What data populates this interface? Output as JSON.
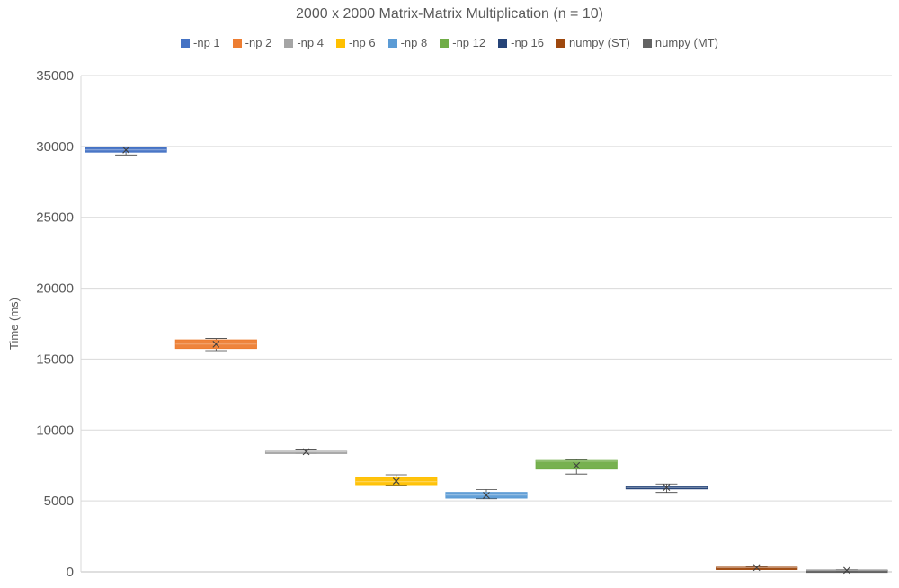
{
  "chart_data": {
    "type": "box",
    "title": "2000 x 2000 Matrix-Matrix Multiplication (n = 10)",
    "xlabel": "",
    "ylabel": "Time (ms)",
    "ylim": [
      0,
      35000
    ],
    "yticks": [
      0,
      5000,
      10000,
      15000,
      20000,
      25000,
      30000,
      35000
    ],
    "grid": true,
    "legend_position": "top",
    "series": [
      {
        "name": "-np 1",
        "color": "#4472C4",
        "min": 29400,
        "q1": 29600,
        "median": 29750,
        "q3": 29900,
        "max": 29950,
        "mean": 29750
      },
      {
        "name": "-np 2",
        "color": "#ED7D31",
        "min": 15600,
        "q1": 15750,
        "median": 16050,
        "q3": 16350,
        "max": 16450,
        "mean": 16050
      },
      {
        "name": "-np 4",
        "color": "#A5A5A5",
        "min": 8350,
        "q1": 8420,
        "median": 8470,
        "q3": 8500,
        "max": 8650,
        "mean": 8470
      },
      {
        "name": "-np 6",
        "color": "#FFC000",
        "min": 6100,
        "q1": 6150,
        "median": 6350,
        "q3": 6650,
        "max": 6850,
        "mean": 6400
      },
      {
        "name": "-np 8",
        "color": "#5B9BD5",
        "min": 5150,
        "q1": 5200,
        "median": 5400,
        "q3": 5600,
        "max": 5800,
        "mean": 5400
      },
      {
        "name": "-np 12",
        "color": "#70AD47",
        "min": 6900,
        "q1": 7250,
        "median": 7800,
        "q3": 7850,
        "max": 7900,
        "mean": 7500
      },
      {
        "name": "-np 16",
        "color": "#264478",
        "min": 5600,
        "q1": 5850,
        "median": 5950,
        "q3": 6050,
        "max": 6200,
        "mean": 5950
      },
      {
        "name": "numpy (ST)",
        "color": "#9E480E",
        "min": 250,
        "q1": 270,
        "median": 300,
        "q3": 320,
        "max": 350,
        "mean": 300
      },
      {
        "name": "numpy (MT)",
        "color": "#636363",
        "min": 60,
        "q1": 80,
        "median": 100,
        "q3": 120,
        "max": 140,
        "mean": 100
      }
    ]
  }
}
